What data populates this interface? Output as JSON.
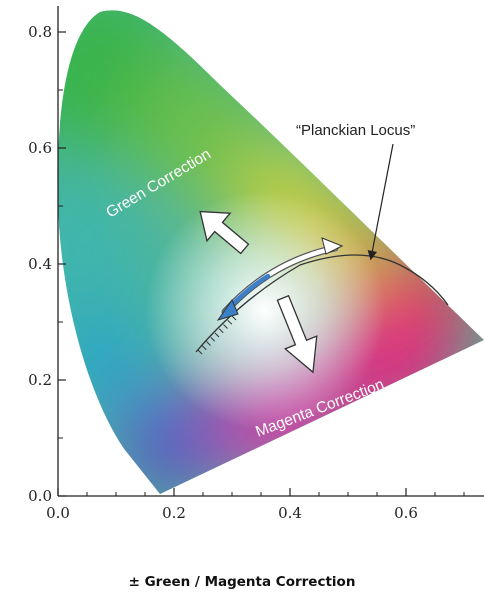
{
  "axes": {
    "x_ticks": [
      "0.0",
      "0.2",
      "0.4",
      "0.6"
    ],
    "y_ticks": [
      "0.0",
      "0.2",
      "0.4",
      "0.6",
      "0.8"
    ]
  },
  "annotations": {
    "green_correction": "Green Correction",
    "magenta_correction": "Magenta Correction",
    "planckian_locus": "“Planckian Locus”"
  },
  "caption": "± Green / Magenta Correction",
  "colors": {
    "arrow_fill": "#ffffff",
    "arrow_stroke": "#333333",
    "locus_line": "#333333",
    "bidirectional_arrow_blue": "#3a7fc8"
  }
}
